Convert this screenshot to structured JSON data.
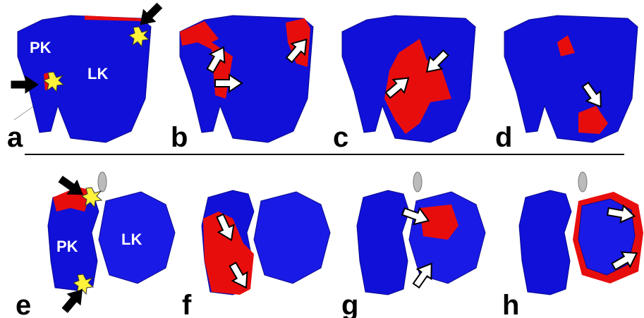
{
  "panels": [
    {
      "letter": "a",
      "labels": [
        "PK",
        "LK"
      ]
    },
    {
      "letter": "b"
    },
    {
      "letter": "c"
    },
    {
      "letter": "d"
    },
    {
      "letter": "e",
      "labels": [
        "PK",
        "LK"
      ]
    },
    {
      "letter": "f"
    },
    {
      "letter": "g"
    },
    {
      "letter": "h"
    }
  ]
}
